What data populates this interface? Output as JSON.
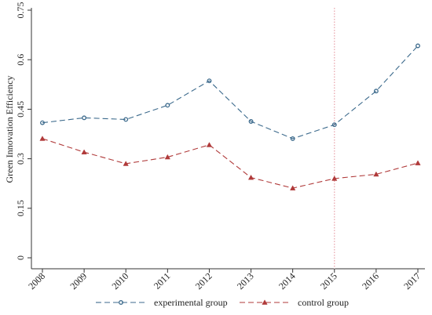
{
  "chart_data": {
    "type": "line",
    "title": "",
    "xlabel": "",
    "ylabel": "Green Innovation Efficiency",
    "categories": [
      "2008",
      "2009",
      "2010",
      "2011",
      "2012",
      "2013",
      "2014",
      "2015",
      "2016",
      "2017"
    ],
    "ylim": [
      0,
      0.75
    ],
    "yticks": [
      0,
      0.15,
      0.3,
      0.45,
      0.6,
      0.75
    ],
    "ytick_labels": [
      "0",
      "0.15",
      "0.3",
      "0.45",
      "0.6",
      "0.75"
    ],
    "grid": false,
    "legend_position": "bottom",
    "reference_line": {
      "x": "2015",
      "color": "#e8a0a8",
      "style": "dotted"
    },
    "series": [
      {
        "name": "experimental group",
        "color": "#3c6a8c",
        "marker": "circle",
        "values": [
          0.409,
          0.424,
          0.419,
          0.462,
          0.536,
          0.413,
          0.361,
          0.403,
          0.505,
          0.642
        ]
      },
      {
        "name": "control group",
        "color": "#b03a3a",
        "marker": "triangle",
        "values": [
          0.361,
          0.32,
          0.285,
          0.305,
          0.342,
          0.243,
          0.211,
          0.24,
          0.253,
          0.287
        ]
      }
    ]
  }
}
